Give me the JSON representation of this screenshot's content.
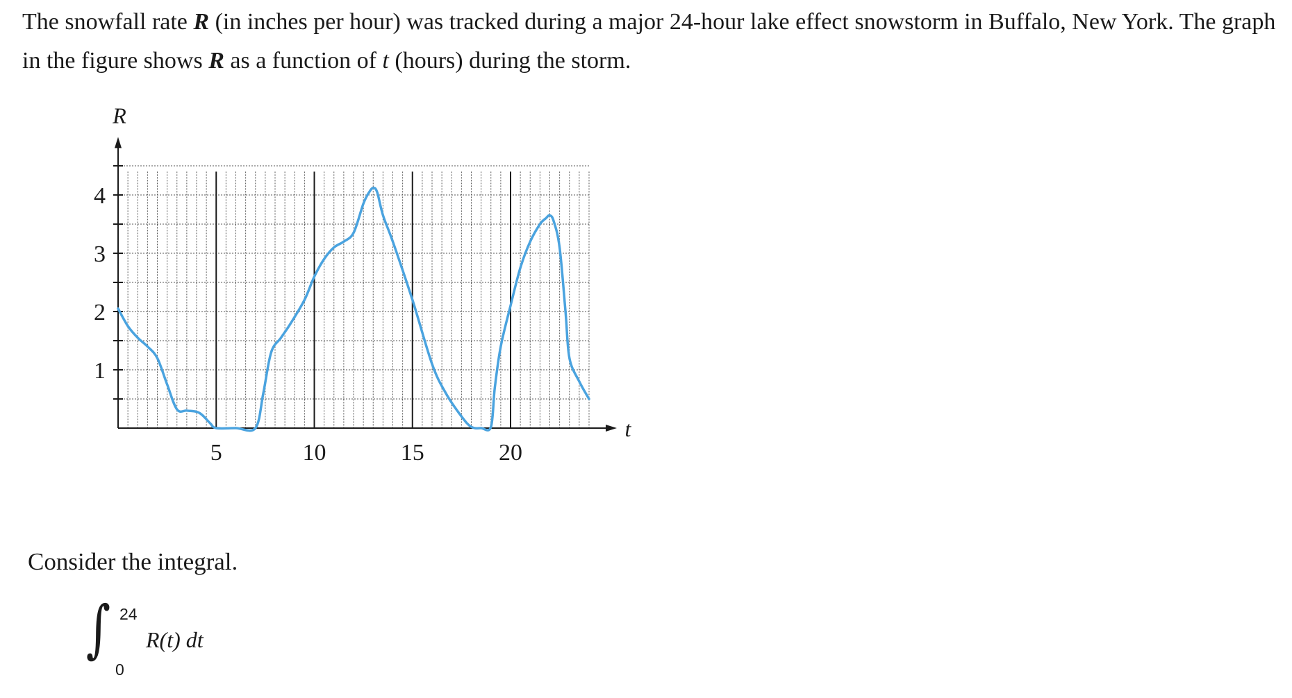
{
  "problem": {
    "text_1": "The snowfall rate ",
    "var_R": "R",
    "text_2": " (in inches per hour) was tracked during a major 24-hour lake effect snowstorm in Buffalo, New York. The graph in the figure shows ",
    "text_3": " as a function of ",
    "var_t": "t",
    "text_4": " (hours) during the storm."
  },
  "question": {
    "consider": "Consider the integral.",
    "upper_limit": "24",
    "lower_limit": "0",
    "integrand": "R(t) dt"
  },
  "colors": {
    "curve": "#4aa3df",
    "axis": "#1a1a1a",
    "grid": "#555555"
  },
  "chart_data": {
    "type": "line",
    "xlabel": "t",
    "ylabel": "R",
    "xlim": [
      0,
      24
    ],
    "ylim": [
      0,
      4.4
    ],
    "x_ticks": [
      5,
      10,
      15,
      20
    ],
    "y_ticks": [
      1,
      2,
      3,
      4
    ],
    "grid": true,
    "series": [
      {
        "points": [
          [
            0,
            2.05
          ],
          [
            0.5,
            1.75
          ],
          [
            1,
            1.55
          ],
          [
            1.5,
            1.4
          ],
          [
            2,
            1.2
          ],
          [
            2.5,
            0.75
          ],
          [
            3,
            0.32
          ],
          [
            3.5,
            0.3
          ],
          [
            4,
            0.28
          ],
          [
            4.3,
            0.22
          ],
          [
            4.7,
            0.08
          ],
          [
            5,
            0
          ],
          [
            6,
            0
          ],
          [
            7,
            0
          ],
          [
            7.4,
            0.6
          ],
          [
            7.8,
            1.3
          ],
          [
            8.3,
            1.55
          ],
          [
            8.8,
            1.8
          ],
          [
            9.5,
            2.2
          ],
          [
            10,
            2.6
          ],
          [
            10.5,
            2.9
          ],
          [
            11,
            3.1
          ],
          [
            11.5,
            3.2
          ],
          [
            12,
            3.35
          ],
          [
            12.5,
            3.85
          ],
          [
            12.8,
            4.05
          ],
          [
            13,
            4.12
          ],
          [
            13.2,
            4.05
          ],
          [
            13.5,
            3.65
          ],
          [
            14,
            3.2
          ],
          [
            15,
            2.2
          ],
          [
            16,
            1.1
          ],
          [
            16.7,
            0.6
          ],
          [
            17.5,
            0.2
          ],
          [
            18,
            0.02
          ],
          [
            18.5,
            0
          ],
          [
            19,
            0.02
          ],
          [
            19.2,
            0.7
          ],
          [
            19.5,
            1.4
          ],
          [
            20,
            2.1
          ],
          [
            20.5,
            2.75
          ],
          [
            21,
            3.2
          ],
          [
            21.5,
            3.5
          ],
          [
            21.8,
            3.6
          ],
          [
            22,
            3.65
          ],
          [
            22.2,
            3.55
          ],
          [
            22.5,
            3.1
          ],
          [
            22.8,
            2.0
          ],
          [
            23,
            1.2
          ],
          [
            23.5,
            0.8
          ],
          [
            24,
            0.5
          ]
        ]
      }
    ]
  }
}
